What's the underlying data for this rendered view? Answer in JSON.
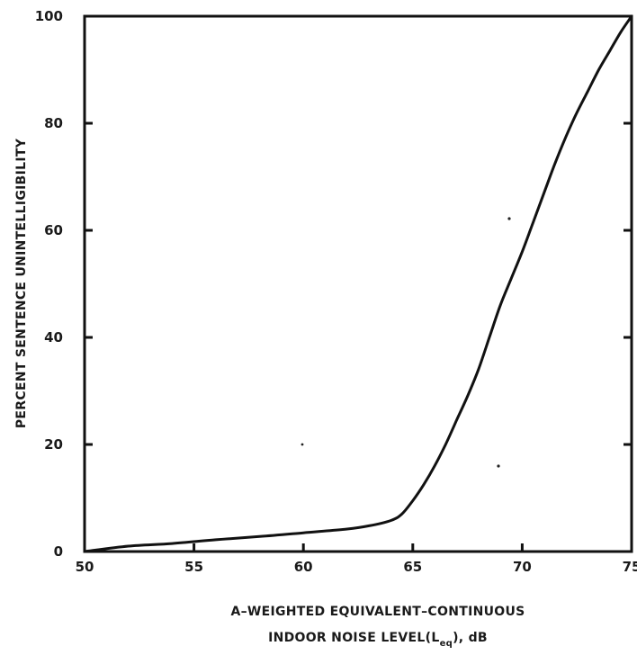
{
  "chart_data": {
    "type": "line",
    "title": "",
    "xlabel_line1": "A–WEIGHTED EQUIVALENT–CONTINUOUS",
    "xlabel_line2_prefix": "INDOOR NOISE LEVEL(L",
    "xlabel_line2_sub": "eq",
    "xlabel_line2_suffix": "), dB",
    "ylabel": "PERCENT SENTENCE UNINTELLIGIBILITY",
    "xlim": [
      50,
      75
    ],
    "ylim": [
      0,
      100
    ],
    "x_ticks": [
      50,
      55,
      60,
      65,
      70,
      75
    ],
    "y_ticks": [
      0,
      20,
      40,
      60,
      80,
      100
    ],
    "x_tick_labels": [
      "50",
      "55",
      "60",
      "65",
      "70",
      "75"
    ],
    "y_tick_labels": [
      "0",
      "20",
      "40",
      "60",
      "80",
      "100"
    ],
    "grid": false,
    "legend": "none",
    "series": [
      {
        "x": [
          50,
          52,
          54,
          56,
          58,
          60,
          62,
          63,
          64,
          64.5,
          65,
          65.5,
          66,
          66.5,
          67,
          67.5,
          68,
          68.5,
          69,
          69.5,
          70,
          70.5,
          71,
          71.5,
          72,
          72.5,
          73,
          73.5,
          74,
          74.5,
          75
        ],
        "y": [
          0,
          1,
          1.5,
          2.2,
          2.8,
          3.5,
          4.2,
          4.8,
          5.8,
          7,
          9.5,
          12.5,
          16,
          20,
          24.5,
          29,
          34,
          40,
          46,
          51,
          56,
          61.5,
          67,
          72.5,
          77.5,
          82,
          86,
          90,
          93.5,
          97,
          100
        ]
      }
    ]
  }
}
